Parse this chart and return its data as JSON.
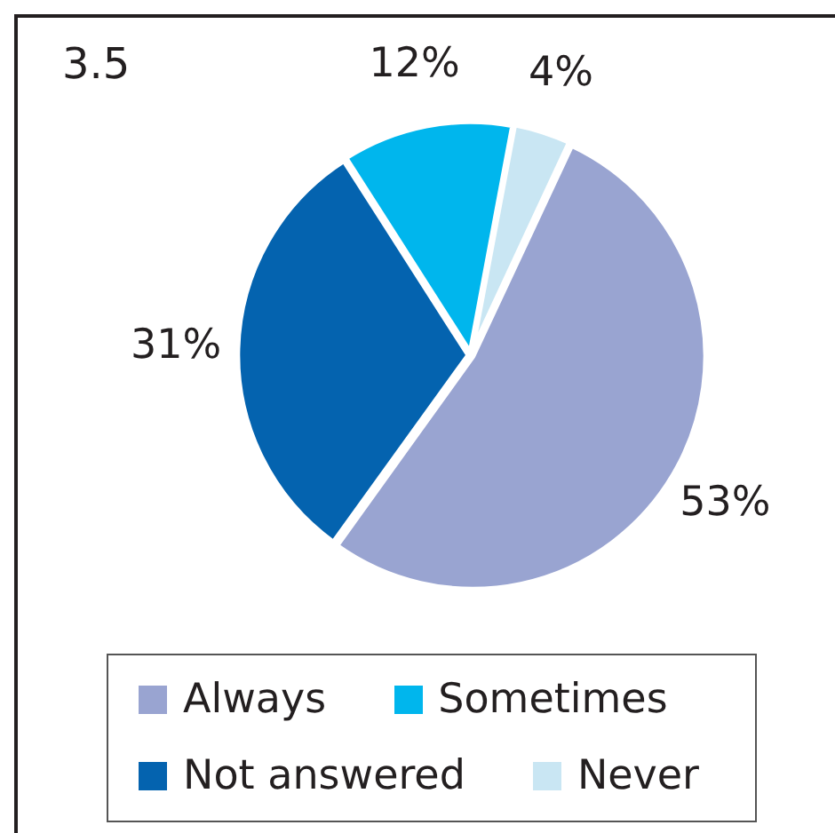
{
  "chart_data": {
    "type": "pie",
    "title": "3.5",
    "categories": [
      "Always",
      "Not answered",
      "Sometimes",
      "Never"
    ],
    "values": [
      53,
      31,
      12,
      4
    ],
    "colors": [
      "#99a4d1",
      "#0463af",
      "#00b6ed",
      "#c9e6f3"
    ],
    "value_labels": [
      "53%",
      "31%",
      "12%",
      "4%"
    ],
    "legend": "bottom"
  }
}
